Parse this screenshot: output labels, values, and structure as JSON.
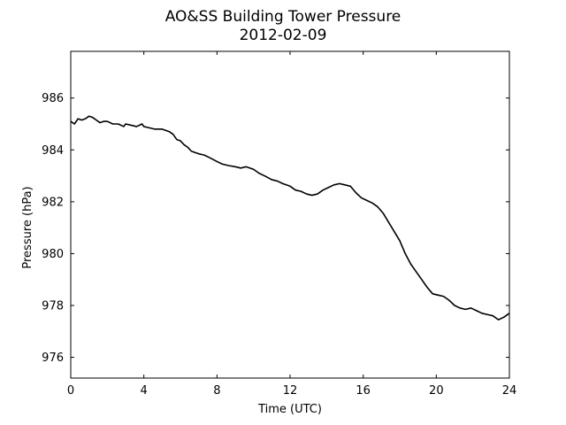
{
  "chart_data": {
    "type": "line",
    "title": "AO&SS Building Tower Pressure",
    "subtitle": "2012-02-09",
    "xlabel": "Time (UTC)",
    "ylabel": "Pressure (hPa)",
    "xlim": [
      0,
      24
    ],
    "ylim": [
      975.2,
      987.8
    ],
    "xticks": [
      0,
      4,
      8,
      12,
      16,
      20,
      24
    ],
    "yticks": [
      976,
      978,
      980,
      982,
      984,
      986
    ],
    "grid": false,
    "legend": "none",
    "line_color": "#000000",
    "series": [
      {
        "x": [
          0,
          0.2,
          0.4,
          0.6,
          0.8,
          1.0,
          1.2,
          1.4,
          1.6,
          1.8,
          2.0,
          2.3,
          2.6,
          2.9,
          3.0,
          3.3,
          3.6,
          3.9,
          4.0,
          4.3,
          4.6,
          5.0,
          5.4,
          5.6,
          5.8,
          6.0,
          6.2,
          6.4,
          6.6,
          6.8,
          7.0,
          7.3,
          7.6,
          8.0,
          8.3,
          8.6,
          9.0,
          9.3,
          9.6,
          10.0,
          10.3,
          10.6,
          11.0,
          11.3,
          11.6,
          12.0,
          12.3,
          12.6,
          12.9,
          13.2,
          13.5,
          13.8,
          14.1,
          14.4,
          14.7,
          15.0,
          15.3,
          15.6,
          15.9,
          16.2,
          16.5,
          16.8,
          17.1,
          17.4,
          17.7,
          18.0,
          18.3,
          18.6,
          18.9,
          19.2,
          19.5,
          19.8,
          20.1,
          20.4,
          20.7,
          21.0,
          21.3,
          21.6,
          21.9,
          22.2,
          22.5,
          22.8,
          23.1,
          23.4,
          23.7,
          24.0
        ],
        "y": [
          985.1,
          985.0,
          985.2,
          985.15,
          985.2,
          985.3,
          985.25,
          985.15,
          985.05,
          985.1,
          985.1,
          985.0,
          985.0,
          984.9,
          985.0,
          984.95,
          984.9,
          985.0,
          984.9,
          984.85,
          984.8,
          984.8,
          984.7,
          984.6,
          984.4,
          984.35,
          984.2,
          984.1,
          983.95,
          983.9,
          983.85,
          983.8,
          983.7,
          983.55,
          983.45,
          983.4,
          983.35,
          983.3,
          983.35,
          983.25,
          983.1,
          983.0,
          982.85,
          982.8,
          982.7,
          982.6,
          982.45,
          982.4,
          982.3,
          982.25,
          982.3,
          982.45,
          982.55,
          982.65,
          982.7,
          982.65,
          982.6,
          982.35,
          982.15,
          982.05,
          981.95,
          981.8,
          981.55,
          981.2,
          980.85,
          980.5,
          980.0,
          979.6,
          979.3,
          979.0,
          978.7,
          978.45,
          978.4,
          978.35,
          978.2,
          978.0,
          977.9,
          977.85,
          977.9,
          977.8,
          977.7,
          977.65,
          977.6,
          977.45,
          977.55,
          977.7
        ]
      }
    ]
  }
}
